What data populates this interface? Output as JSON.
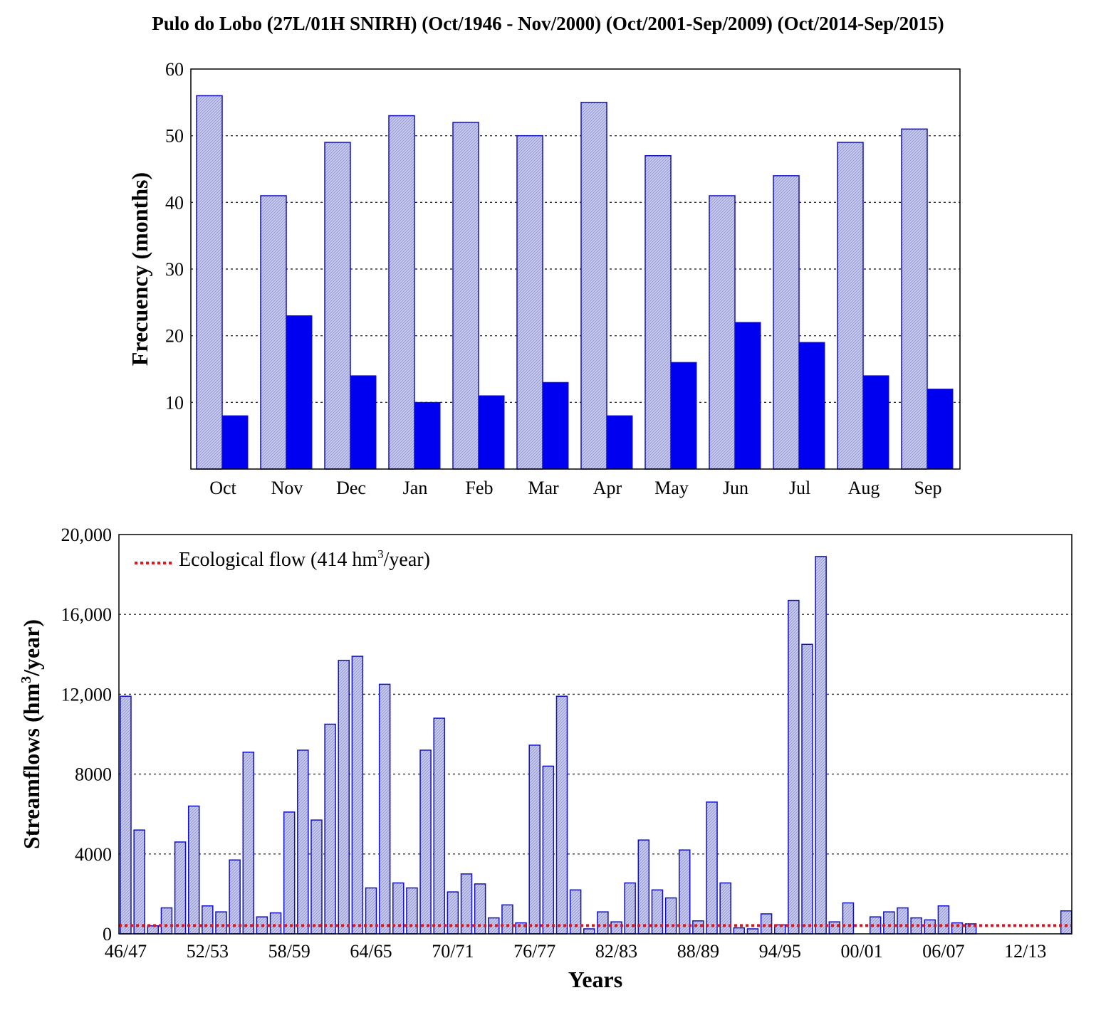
{
  "title": "Pulo do Lobo (27L/01H SNIRH) (Oct/1946 - Nov/2000) (Oct/2001-Sep/2009) (Oct/2014-Sep/2015)",
  "colors": {
    "hatch_fill": "#c6c9ee",
    "outline": "#1010c8",
    "solid_bar": "#0000f0",
    "eco_line": "#e8141c",
    "grid": "#333333"
  },
  "chart_data": [
    {
      "type": "bar",
      "ylabel": "Frecuency (months)",
      "xlabel": "",
      "ylim": [
        0,
        60
      ],
      "yticks": [
        10,
        20,
        30,
        40,
        50,
        60
      ],
      "grid": true,
      "categories": [
        "Oct",
        "Nov",
        "Dec",
        "Jan",
        "Feb",
        "Mar",
        "Apr",
        "May",
        "Jun",
        "Jul",
        "Aug",
        "Sep"
      ],
      "series": [
        {
          "name": "hatched",
          "values": [
            56,
            41,
            49,
            53,
            52,
            50,
            55,
            47,
            41,
            44,
            49,
            51
          ]
        },
        {
          "name": "solid",
          "values": [
            8,
            23,
            14,
            10,
            11,
            13,
            8,
            16,
            22,
            19,
            14,
            12
          ]
        }
      ]
    },
    {
      "type": "bar",
      "xlabel": "Years",
      "ylabel_main": "Streamflows (hm",
      "ylabel_sup": "3",
      "ylabel_end": "/year)",
      "ylim": [
        0,
        20000
      ],
      "yticks": [
        "0",
        "4000",
        "8000",
        "12,000",
        "16,000",
        "20,000"
      ],
      "ytick_values": [
        0,
        4000,
        8000,
        12000,
        16000,
        20000
      ],
      "grid": true,
      "xtick_labels": [
        "46/47",
        "52/53",
        "58/59",
        "64/65",
        "70/71",
        "76/77",
        "82/83",
        "88/89",
        "94/95",
        "00/01",
        "06/07",
        "12/13"
      ],
      "xtick_indices": [
        0,
        6,
        12,
        18,
        24,
        30,
        36,
        42,
        48,
        54,
        60,
        66
      ],
      "values": [
        11900,
        5200,
        400,
        1300,
        4600,
        6400,
        1400,
        1100,
        3700,
        9100,
        850,
        1050,
        6100,
        9200,
        5700,
        10500,
        13700,
        13900,
        2300,
        12500,
        2550,
        2300,
        9200,
        10800,
        2100,
        3000,
        2500,
        800,
        1450,
        550,
        9450,
        8400,
        11900,
        2200,
        250,
        1100,
        600,
        2550,
        4700,
        2200,
        1800,
        4200,
        650,
        6600,
        2550,
        300,
        250,
        1000,
        450,
        16700,
        14500,
        18900,
        600,
        1550,
        0,
        850,
        1100,
        1300,
        800,
        700,
        1400,
        550,
        500,
        0,
        0,
        0,
        0,
        0,
        0,
        1150
      ],
      "eco_flow": 414,
      "legend": {
        "position": "top-left",
        "label_main": "Ecological flow (414 hm",
        "label_sup": "3",
        "label_end": "/year)"
      }
    }
  ]
}
